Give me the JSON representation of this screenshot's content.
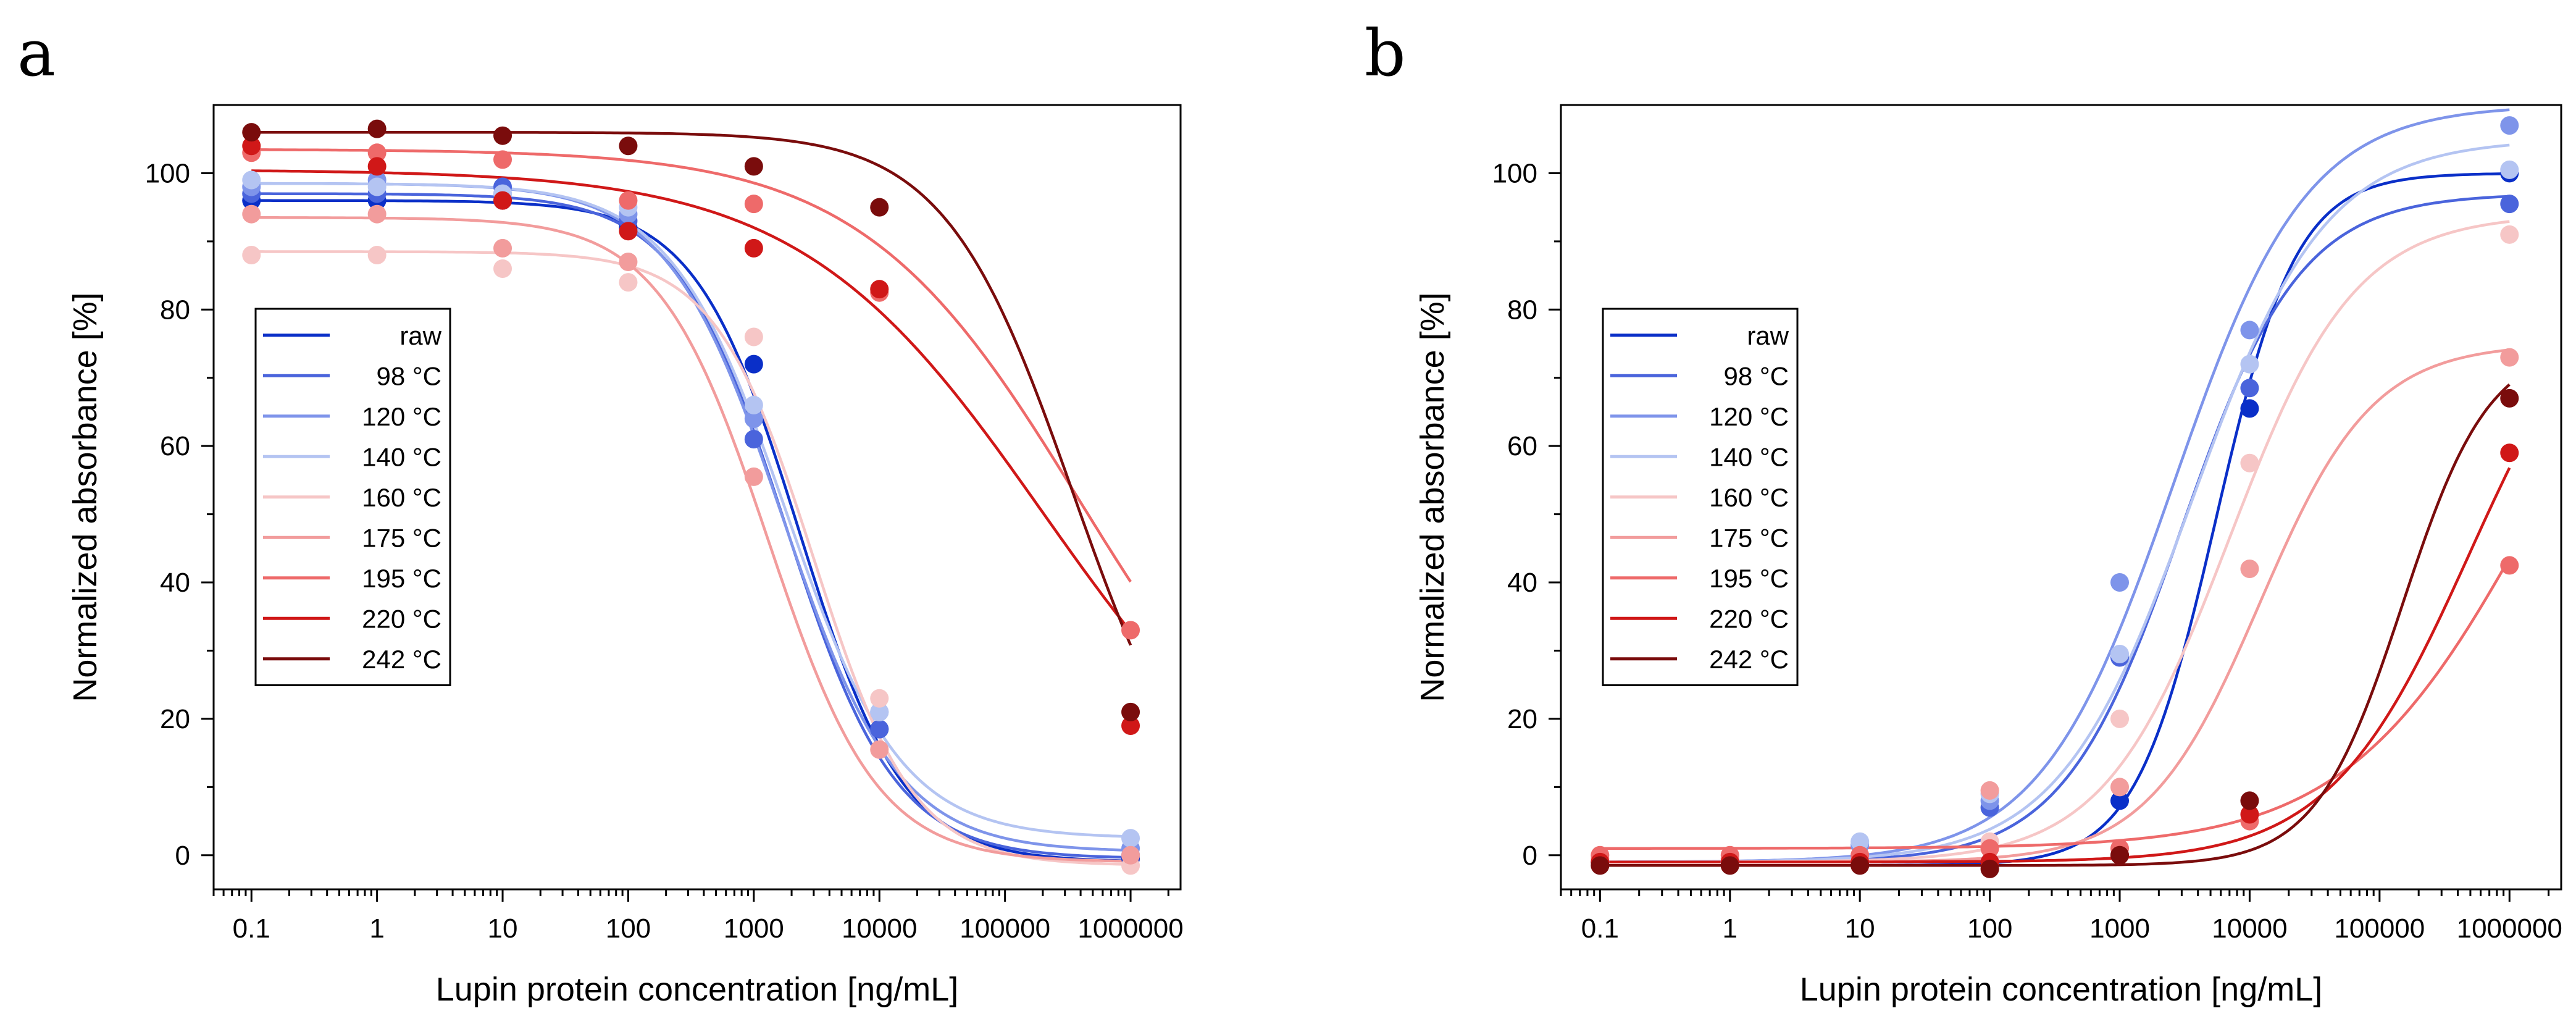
{
  "chart_data": [
    {
      "panel": "a",
      "type": "scatter",
      "xscale": "log",
      "xlabel": "Lupin protein concentration [ng/mL]",
      "ylabel": "Normalized absorbance [%]",
      "xlim": [
        0.05,
        2500000
      ],
      "ylim": [
        -5,
        110
      ],
      "xticks": [
        0.1,
        1,
        10,
        100,
        1000,
        10000,
        100000,
        1000000
      ],
      "xtick_labels": [
        "0.1",
        "1",
        "10",
        "100",
        "1000",
        "10000",
        "100000",
        "1000000"
      ],
      "yticks": [
        0,
        20,
        40,
        60,
        80,
        100
      ],
      "ytick_labels": [
        "0",
        "20",
        "40",
        "60",
        "80",
        "100"
      ],
      "legend_position": "center-left",
      "x": [
        0.1,
        1,
        10,
        100,
        1000,
        10000,
        1000000
      ],
      "series": [
        {
          "name": "raw",
          "color": "#0a2fc8",
          "values": [
            96,
            96,
            96,
            92,
            72,
            18.5,
            -0.5
          ],
          "fit": {
            "top": 96,
            "bottom": -1,
            "ec50": 2300,
            "hill": 1.05
          }
        },
        {
          "name": "98 °C",
          "color": "#4a64dc",
          "values": [
            97,
            97,
            98,
            93,
            61,
            18.5,
            0
          ],
          "fit": {
            "top": 97,
            "bottom": -0.5,
            "ec50": 1800,
            "hill": 1.0
          }
        },
        {
          "name": "120 °C",
          "color": "#7e94ea",
          "values": [
            98,
            99,
            97,
            94,
            64,
            21,
            1
          ],
          "fit": {
            "top": 98.5,
            "bottom": 0.5,
            "ec50": 1700,
            "hill": 0.95
          }
        },
        {
          "name": "140 °C",
          "color": "#b4c4f2",
          "values": [
            99,
            98,
            97,
            95,
            66,
            21,
            2.5
          ],
          "fit": {
            "top": 98.5,
            "bottom": 2.5,
            "ec50": 1800,
            "hill": 0.95
          }
        },
        {
          "name": "160 °C",
          "color": "#f6c6c6",
          "values": [
            88,
            88,
            86,
            84,
            76,
            23,
            -1.5
          ],
          "fit": {
            "top": 88.5,
            "bottom": -1.5,
            "ec50": 3000,
            "hill": 1.1
          }
        },
        {
          "name": "175 °C",
          "color": "#f29c9c",
          "values": [
            94,
            94,
            89,
            87,
            55.5,
            15.5,
            0
          ],
          "fit": {
            "top": 93.5,
            "bottom": -1,
            "ec50": 1300,
            "hill": 1.0
          }
        },
        {
          "name": "195 °C",
          "color": "#ee6a6a",
          "values": [
            103,
            103,
            102,
            96,
            95.5,
            82.5,
            33
          ],
          "fit": {
            "top": 103.5,
            "bottom": 0,
            "ec50": 400000,
            "hill": 0.5
          }
        },
        {
          "name": "220 °C",
          "color": "#d01818",
          "values": [
            104,
            101,
            96,
            91.5,
            89,
            83,
            19
          ],
          "fit": {
            "top": 100.5,
            "bottom": 0,
            "ec50": 200000,
            "hill": 0.45
          }
        },
        {
          "name": "242 °C",
          "color": "#7a0c0c",
          "values": [
            106,
            106.5,
            105.5,
            104,
            101,
            95,
            21
          ],
          "fit": {
            "top": 106,
            "bottom": 0,
            "ec50": 350000,
            "hill": 0.85
          }
        }
      ]
    },
    {
      "panel": "b",
      "type": "scatter",
      "xscale": "log",
      "xlabel": "Lupin protein concentration [ng/mL]",
      "ylabel": "Normalized absorbance [%]",
      "xlim": [
        0.05,
        2500000
      ],
      "ylim": [
        -5,
        110
      ],
      "xticks": [
        0.1,
        1,
        10,
        100,
        1000,
        10000,
        100000,
        1000000
      ],
      "xtick_labels": [
        "0.1",
        "1",
        "10",
        "100",
        "1000",
        "10000",
        "100000",
        "1000000"
      ],
      "yticks": [
        0,
        20,
        40,
        60,
        80,
        100
      ],
      "ytick_labels": [
        "0",
        "20",
        "40",
        "60",
        "80",
        "100"
      ],
      "legend_position": "center-left",
      "x": [
        0.1,
        1,
        10,
        100,
        1000,
        10000,
        1000000
      ],
      "series": [
        {
          "name": "raw",
          "color": "#0a2fc8",
          "values": [
            -1,
            -1,
            -1,
            -1,
            8,
            65.5,
            100
          ],
          "fit": {
            "top": 100,
            "bottom": -1.5,
            "ec50": 5500,
            "hill": 1.4
          }
        },
        {
          "name": "98 °C",
          "color": "#4a64dc",
          "values": [
            -1,
            -1,
            -1,
            7,
            29,
            68.5,
            95.5
          ],
          "fit": {
            "top": 97,
            "bottom": -1,
            "ec50": 3000,
            "hill": 0.95
          }
        },
        {
          "name": "120 °C",
          "color": "#7e94ea",
          "values": [
            -1,
            -1,
            1.5,
            8,
            40,
            77,
            107
          ],
          "fit": {
            "top": 110,
            "bottom": -1,
            "ec50": 2600,
            "hill": 0.85
          }
        },
        {
          "name": "140 °C",
          "color": "#b4c4f2",
          "values": [
            -1,
            -1,
            2,
            9,
            29.5,
            72,
            100.5
          ],
          "fit": {
            "top": 105,
            "bottom": -1,
            "ec50": 3600,
            "hill": 0.85
          }
        },
        {
          "name": "160 °C",
          "color": "#f6c6c6",
          "values": [
            -1,
            -1,
            -1,
            2,
            20,
            57.5,
            91
          ],
          "fit": {
            "top": 94,
            "bottom": -1,
            "ec50": 7000,
            "hill": 0.9
          }
        },
        {
          "name": "175 °C",
          "color": "#f29c9c",
          "values": [
            -0.5,
            -0.5,
            -1,
            9.5,
            10,
            42,
            73
          ],
          "fit": {
            "top": 75,
            "bottom": -1,
            "ec50": 12000,
            "hill": 1.0
          }
        },
        {
          "name": "195 °C",
          "color": "#ee6a6a",
          "values": [
            0,
            0,
            0,
            1,
            1,
            5,
            42.5
          ],
          "fit": {
            "top": 100,
            "bottom": 1,
            "ec50": 1600000,
            "hill": 0.6
          }
        },
        {
          "name": "220 °C",
          "color": "#d01818",
          "values": [
            -1,
            -1,
            -1,
            -1,
            0,
            6,
            59
          ],
          "fit": {
            "top": 90,
            "bottom": -1,
            "ec50": 500000,
            "hill": 0.8
          }
        },
        {
          "name": "242 °C",
          "color": "#7a0c0c",
          "values": [
            -1.5,
            -1.5,
            -1.5,
            -2,
            0,
            8,
            67
          ],
          "fit": {
            "top": 75,
            "bottom": -1.5,
            "ec50": 150000,
            "hill": 1.3
          }
        }
      ]
    }
  ]
}
